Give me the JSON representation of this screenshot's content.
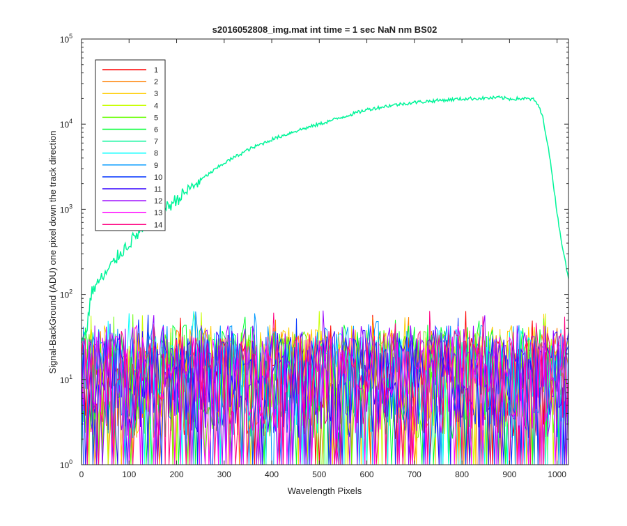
{
  "chart_data": {
    "type": "line",
    "title": "s2016052808_img.mat int time = 1 sec  NaN nm BS02",
    "xlabel": "Wavelength Pixels",
    "ylabel": "Signal-BackGround (ADU) one pixel down the track direction",
    "xlim": [
      0,
      1024
    ],
    "ylim": [
      1,
      100000
    ],
    "yscale": "log",
    "grid": false,
    "legend_position": "top-left",
    "x_ticks": [
      0,
      100,
      200,
      300,
      400,
      500,
      600,
      700,
      800,
      900,
      1000
    ],
    "x_tick_labels": [
      "0",
      "100",
      "200",
      "300",
      "400",
      "500",
      "600",
      "700",
      "800",
      "900",
      "1000"
    ],
    "y_ticks": [
      1,
      10,
      100,
      1000,
      10000,
      100000
    ],
    "y_tick_labels": [
      {
        "base": "10",
        "exp": "0"
      },
      {
        "base": "10",
        "exp": "1"
      },
      {
        "base": "10",
        "exp": "2"
      },
      {
        "base": "10",
        "exp": "3"
      },
      {
        "base": "10",
        "exp": "4"
      },
      {
        "base": "10",
        "exp": "5"
      }
    ],
    "noise_floor_range": [
      1,
      70
    ],
    "series": [
      {
        "name": "1",
        "color": "#ff0000",
        "kind": "noise"
      },
      {
        "name": "2",
        "color": "#ff7f00",
        "kind": "noise"
      },
      {
        "name": "3",
        "color": "#ffcc00",
        "kind": "noise"
      },
      {
        "name": "4",
        "color": "#c8ff00",
        "kind": "noise"
      },
      {
        "name": "5",
        "color": "#66ff00",
        "kind": "noise"
      },
      {
        "name": "6",
        "color": "#00ff33",
        "kind": "noise"
      },
      {
        "name": "7",
        "color": "#00f599",
        "kind": "signal",
        "x": [
          0,
          10,
          20,
          30,
          50,
          80,
          100,
          130,
          160,
          200,
          250,
          300,
          350,
          400,
          450,
          500,
          550,
          600,
          650,
          700,
          750,
          800,
          850,
          880,
          900,
          930,
          950,
          960,
          970,
          980,
          990,
          1000,
          1010,
          1020,
          1024
        ],
        "y": [
          30,
          35,
          100,
          130,
          170,
          300,
          400,
          600,
          850,
          1300,
          2200,
          3500,
          5000,
          6600,
          8300,
          10000,
          12200,
          14800,
          16600,
          18000,
          19000,
          19800,
          20200,
          20500,
          19800,
          20000,
          19500,
          17000,
          12000,
          6000,
          2500,
          900,
          400,
          200,
          150
        ]
      },
      {
        "name": "8",
        "color": "#00ffff",
        "kind": "noise"
      },
      {
        "name": "9",
        "color": "#0099ff",
        "kind": "noise"
      },
      {
        "name": "10",
        "color": "#0033ff",
        "kind": "noise"
      },
      {
        "name": "11",
        "color": "#3300ff",
        "kind": "noise"
      },
      {
        "name": "12",
        "color": "#9900ff",
        "kind": "noise"
      },
      {
        "name": "13",
        "color": "#ff00ff",
        "kind": "noise"
      },
      {
        "name": "14",
        "color": "#ff0080",
        "kind": "noise"
      }
    ]
  }
}
